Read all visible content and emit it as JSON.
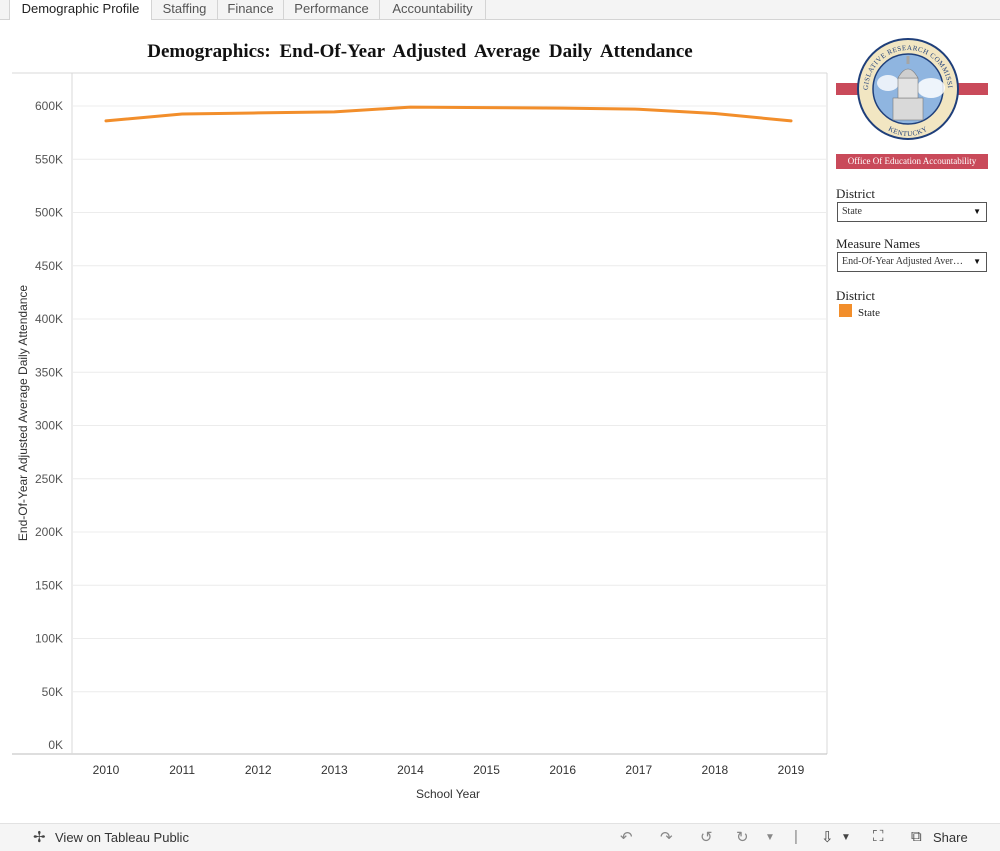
{
  "tabs": [
    {
      "label": "Demographic Profile",
      "active": true
    },
    {
      "label": "Staffing",
      "active": false
    },
    {
      "label": "Finance",
      "active": false
    },
    {
      "label": "Performance",
      "active": false
    },
    {
      "label": "Accountability",
      "active": false
    }
  ],
  "chart_data": {
    "type": "line",
    "title": "Demographics: End-Of-Year Adjusted Average Daily Attendance",
    "xlabel": "School Year",
    "ylabel": "End-Of-Year Adjusted Average Daily Attendance",
    "x": [
      "2010",
      "2011",
      "2012",
      "2013",
      "2014",
      "2015",
      "2016",
      "2017",
      "2018",
      "2019"
    ],
    "series": [
      {
        "name": "State",
        "color": "#f28e2b",
        "values": [
          586000,
          592500,
          593500,
          594500,
          599000,
          598500,
          598000,
          597000,
          593000,
          586000
        ]
      }
    ],
    "ylim": [
      0,
      630000
    ],
    "yticks": [
      0,
      50000,
      100000,
      150000,
      200000,
      250000,
      300000,
      350000,
      400000,
      450000,
      500000,
      550000,
      600000
    ],
    "ytick_labels": [
      "0K",
      "50K",
      "100K",
      "150K",
      "200K",
      "250K",
      "300K",
      "350K",
      "400K",
      "450K",
      "500K",
      "550K",
      "600K"
    ],
    "grid": true,
    "legend": "right"
  },
  "logo": {
    "top_text": "LEGISLATIVE RESEARCH COMMISSION",
    "bottom_text": "KENTUCKY"
  },
  "sidebar": {
    "banner": "Office Of Education Accountability",
    "district_filter": {
      "label": "District",
      "value": "State"
    },
    "measure_filter": {
      "label": "Measure Names",
      "value": "End-Of-Year Adjusted Average Daily Attendance"
    },
    "legend": {
      "title": "District",
      "items": [
        {
          "label": "State",
          "color": "#f28e2b"
        }
      ]
    }
  },
  "footer": {
    "view_label": "View on Tableau Public",
    "share_label": "Share"
  }
}
